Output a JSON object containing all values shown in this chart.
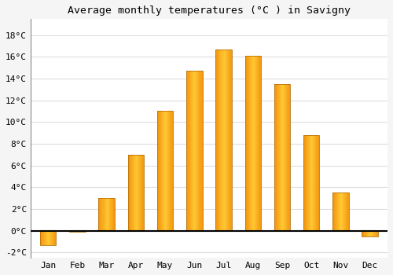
{
  "title": "Average monthly temperatures (°C ) in Savigny",
  "months": [
    "Jan",
    "Feb",
    "Mar",
    "Apr",
    "May",
    "Jun",
    "Jul",
    "Aug",
    "Sep",
    "Oct",
    "Nov",
    "Dec"
  ],
  "values": [
    -1.3,
    -0.1,
    3.0,
    7.0,
    11.0,
    14.7,
    16.7,
    16.1,
    13.5,
    8.8,
    3.5,
    -0.5
  ],
  "bar_color": "#FFA500",
  "bar_edge_color": "#B8720A",
  "background_color": "#f5f5f5",
  "plot_bg_color": "#ffffff",
  "grid_color": "#dddddd",
  "ylim": [
    -2.5,
    19.5
  ],
  "yticks": [
    -2,
    0,
    2,
    4,
    6,
    8,
    10,
    12,
    14,
    16,
    18
  ],
  "title_fontsize": 9.5,
  "tick_fontsize": 8,
  "bar_width": 0.55
}
